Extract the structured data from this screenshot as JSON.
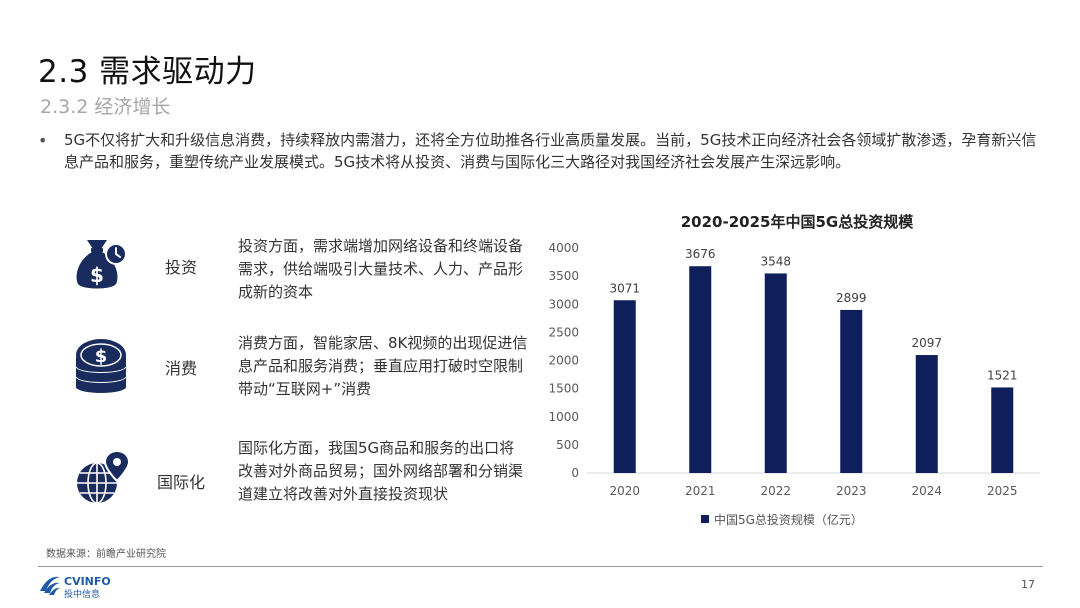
{
  "slide": {
    "title": "2.3 需求驱动力",
    "subtitle": "2.3.2 经济增长",
    "bullet": "•",
    "intro": "5G不仅将扩大和升级信息消费，持续释放内需潜力，还将全方位助推各行业高质量发展。当前，5G技术正向经济社会各领域扩散渗透，孕育新兴信息产品和服务，重塑传统产业发展模式。5G技术将从投资、消费与国际化三大路径对我国经济社会发展产生深远影响。",
    "pillars": [
      {
        "label": "投资",
        "icon": "money-bag-clock-icon",
        "text": "投资方面，需求端增加网络设备和终端设备需求，供给端吸引大量技术、人力、产品形成新的资本"
      },
      {
        "label": "消费",
        "icon": "coin-stack-icon",
        "text": "消费方面，智能家居、8K视频的出现促进信息产品和服务消费；垂直应用打破时空限制带动“互联网+”消费"
      },
      {
        "label": "国际化",
        "icon": "globe-pin-icon",
        "text": "国际化方面，我国5G商品和服务的出口将改善对外商品贸易；国外网络部署和分销渠道建立将改善对外直接投资现状"
      }
    ],
    "source": "数据来源：前瞻产业研究院",
    "logo": {
      "name": "CVINFO",
      "subtext": "投中信息"
    },
    "page_number": "17",
    "colors": {
      "icon": "#1a2c5e",
      "bar": "#0f1f5c",
      "logo": "#1f5aa8"
    }
  },
  "chart_data": {
    "type": "bar",
    "title": "2020-2025年中国5G总投资规模",
    "categories": [
      "2020",
      "2021",
      "2022",
      "2023",
      "2024",
      "2025"
    ],
    "series": [
      {
        "name": "中国5G总投资规模（亿元）",
        "values": [
          3071,
          3676,
          3548,
          2899,
          2097,
          1521
        ]
      }
    ],
    "ylim": [
      0,
      4000
    ],
    "yticks": [
      "0",
      "500",
      "1000",
      "1500",
      "2000",
      "2500",
      "3000",
      "3500",
      "4000"
    ],
    "data_labels": [
      "3071",
      "3676",
      "3548",
      "2899",
      "2097",
      "1521"
    ],
    "legend": "bottom",
    "grid": false
  }
}
